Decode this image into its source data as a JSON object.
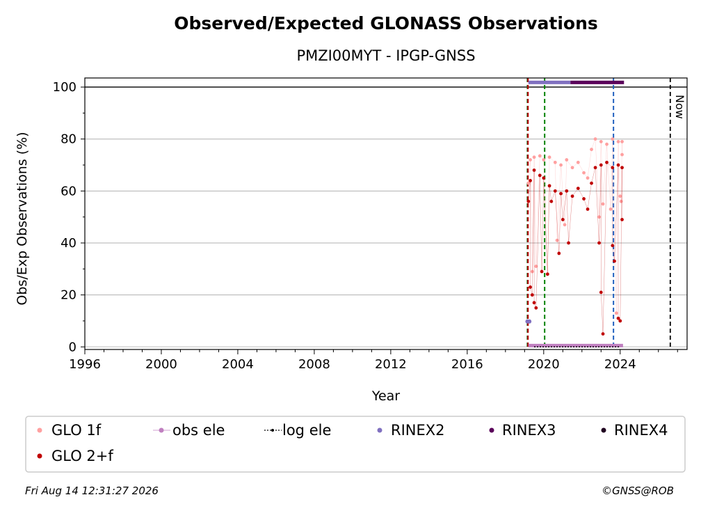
{
  "chart_data": {
    "type": "scatter",
    "title": "Observed/Expected GLONASS Observations",
    "subtitle": "PMZI00MYT - IPGP-GNSS",
    "xlabel": "Year",
    "ylabel": "Obs/Exp Observations (%)",
    "xlim": [
      1996,
      2027.5
    ],
    "ylim": [
      -1,
      103.5
    ],
    "xticks": [
      "1996",
      "2000",
      "2004",
      "2008",
      "2012",
      "2016",
      "2020",
      "2024"
    ],
    "yticks": [
      "0",
      "20",
      "40",
      "60",
      "80",
      "100"
    ],
    "grid": "y",
    "legend_position": "bottom",
    "reference_line": 100,
    "now_label": "Now",
    "now_x": 2026.62,
    "vlines": [
      {
        "x": 2019.15,
        "color": "#006400"
      },
      {
        "x": 2019.18,
        "color": "#c00000"
      },
      {
        "x": 2020.05,
        "color": "#008000"
      },
      {
        "x": 2023.65,
        "color": "#1f5fbf"
      }
    ],
    "series": [
      {
        "name": "GLO 1f",
        "color": "#ffa0a0",
        "points": [
          [
            2019.2,
            63
          ],
          [
            2019.3,
            72
          ],
          [
            2019.5,
            73
          ],
          [
            2019.8,
            73.5
          ],
          [
            2020.0,
            72
          ],
          [
            2020.3,
            73
          ],
          [
            2020.6,
            71
          ],
          [
            2020.9,
            70
          ],
          [
            2021.2,
            72
          ],
          [
            2021.5,
            69
          ],
          [
            2021.8,
            71
          ],
          [
            2022.1,
            67
          ],
          [
            2022.3,
            65
          ],
          [
            2022.5,
            76
          ],
          [
            2022.7,
            80
          ],
          [
            2023.0,
            79
          ],
          [
            2023.3,
            78
          ],
          [
            2023.6,
            80
          ],
          [
            2023.9,
            79
          ],
          [
            2024.1,
            79
          ],
          [
            2019.4,
            29
          ],
          [
            2019.6,
            31
          ],
          [
            2020.2,
            28
          ],
          [
            2020.7,
            41
          ],
          [
            2021.1,
            47
          ],
          [
            2022.9,
            50
          ],
          [
            2023.1,
            55
          ],
          [
            2023.5,
            53
          ],
          [
            2023.8,
            13
          ],
          [
            2024.0,
            58
          ],
          [
            2024.05,
            56
          ],
          [
            2024.1,
            74
          ]
        ]
      },
      {
        "name": "GLO 2+f",
        "color": "#c00000",
        "points": [
          [
            2019.2,
            56
          ],
          [
            2019.3,
            64
          ],
          [
            2019.5,
            68
          ],
          [
            2019.8,
            66
          ],
          [
            2020.0,
            65
          ],
          [
            2020.3,
            62
          ],
          [
            2020.6,
            60
          ],
          [
            2020.9,
            59
          ],
          [
            2021.2,
            60
          ],
          [
            2021.5,
            58
          ],
          [
            2021.8,
            61
          ],
          [
            2022.1,
            57
          ],
          [
            2022.3,
            53
          ],
          [
            2022.5,
            63
          ],
          [
            2022.7,
            69
          ],
          [
            2023.0,
            70
          ],
          [
            2023.3,
            71
          ],
          [
            2023.6,
            69
          ],
          [
            2023.9,
            70
          ],
          [
            2024.1,
            69
          ],
          [
            2019.3,
            23
          ],
          [
            2019.4,
            20
          ],
          [
            2019.5,
            17
          ],
          [
            2019.6,
            15
          ],
          [
            2019.9,
            29
          ],
          [
            2020.2,
            28
          ],
          [
            2020.4,
            56
          ],
          [
            2020.8,
            36
          ],
          [
            2021.0,
            49
          ],
          [
            2021.3,
            40
          ],
          [
            2022.9,
            40
          ],
          [
            2023.0,
            21
          ],
          [
            2023.1,
            5
          ],
          [
            2023.6,
            39
          ],
          [
            2023.7,
            33
          ],
          [
            2023.9,
            11
          ],
          [
            2024.0,
            10
          ],
          [
            2024.1,
            49
          ]
        ]
      },
      {
        "name": "obs ele",
        "color": "#c080c0",
        "segment": [
          [
            2019.2,
            0.5
          ],
          [
            2024.15,
            0.5
          ]
        ]
      },
      {
        "name": "log ele",
        "color": "#000000",
        "segment": [
          [
            2019.5,
            0
          ],
          [
            2024.0,
            0
          ]
        ]
      },
      {
        "name": "RINEX2",
        "color": "#8070c0",
        "segment": [
          [
            2019.2,
            101.8
          ],
          [
            2021.4,
            101.8
          ]
        ],
        "extra_points": [
          [
            2019.15,
            9.8
          ],
          [
            2019.25,
            9.8
          ]
        ]
      },
      {
        "name": "RINEX3",
        "color": "#5a005a",
        "segment": [
          [
            2021.4,
            101.8
          ],
          [
            2024.2,
            101.8
          ]
        ]
      },
      {
        "name": "RINEX4",
        "color": "#200020"
      }
    ]
  },
  "footer": {
    "timestamp": "Fri Aug 14 12:31:27 2026",
    "credit": "©GNSS@ROB"
  }
}
